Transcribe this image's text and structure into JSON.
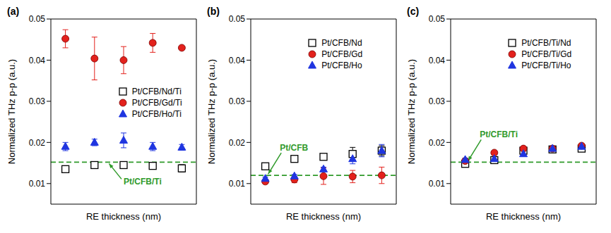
{
  "chart_data": [
    {
      "type": "scatter",
      "title": "(a)",
      "x_label": "RE thickness (nm)",
      "y_label": "Normalized THz p-p (a.u.)",
      "xlim": [
        0,
        4.5
      ],
      "xticks": [
        0,
        1,
        2,
        3,
        4
      ],
      "ylim": [
        0.005,
        0.05
      ],
      "yticks": [
        0.01,
        0.02,
        0.03,
        0.04,
        0.05
      ],
      "tick_labels": "y",
      "legend": "center",
      "reference": {
        "value": 0.0152,
        "label": "Pt/CFB/Ti"
      },
      "series": [
        {
          "name": "Pt/CFB/Nd/Ti",
          "color": "#000000",
          "marker": "square",
          "x": [
            0.45,
            1.35,
            2.25,
            3.15,
            4.05
          ],
          "values": [
            0.0135,
            0.0145,
            0.0145,
            0.0143,
            0.0137
          ],
          "errors": [
            0.0006,
            0.0004,
            0.0005,
            0.0006,
            0.0009
          ]
        },
        {
          "name": "Pt/CFB/Gd/Ti",
          "color": "#e3211c",
          "marker": "circle",
          "x": [
            0.45,
            1.35,
            2.25,
            3.15,
            4.05
          ],
          "values": [
            0.0452,
            0.0404,
            0.04,
            0.0442,
            0.043
          ],
          "errors": [
            0.0022,
            0.0052,
            0.0033,
            0.0023,
            0.0003
          ]
        },
        {
          "name": "Pt/CFB/Ho/Ti",
          "color": "#1f35e0",
          "marker": "triangle",
          "x": [
            0.45,
            1.35,
            2.25,
            3.15,
            4.05
          ],
          "values": [
            0.019,
            0.02,
            0.0205,
            0.019,
            0.0188
          ],
          "errors": [
            0.001,
            0.0008,
            0.0018,
            0.001,
            0.0007
          ]
        }
      ]
    },
    {
      "type": "scatter",
      "title": "(b)",
      "x_label": "RE thickness (nm)",
      "y_label": "Normalized THz p-p (a.u.)",
      "xlim": [
        0,
        4.5
      ],
      "xticks": [
        0,
        1,
        2,
        3,
        4
      ],
      "ylim": [
        0.005,
        0.05
      ],
      "yticks": [
        0.01,
        0.02,
        0.03,
        0.04,
        0.05
      ],
      "tick_labels": "y",
      "legend": "top",
      "reference": {
        "value": 0.012,
        "label": "Pt/CFB"
      },
      "series": [
        {
          "name": "Pt/CFB/Nd",
          "color": "#000000",
          "marker": "square",
          "x": [
            0.45,
            1.35,
            2.25,
            3.15,
            4.05
          ],
          "values": [
            0.0142,
            0.016,
            0.0165,
            0.0172,
            0.018
          ],
          "errors": [
            0.0004,
            0.0005,
            0.0006,
            0.0016,
            0.0012
          ]
        },
        {
          "name": "Pt/CFB/Gd",
          "color": "#e3211c",
          "marker": "circle",
          "x": [
            0.45,
            1.35,
            2.25,
            3.15,
            4.05
          ],
          "values": [
            0.0105,
            0.011,
            0.0118,
            0.0117,
            0.012
          ],
          "errors": [
            0.0004,
            0.0008,
            0.002,
            0.0015,
            0.002
          ]
        },
        {
          "name": "Pt/CFB/Ho",
          "color": "#1f35e0",
          "marker": "triangle",
          "x": [
            0.45,
            1.35,
            2.25,
            3.15,
            4.05
          ],
          "values": [
            0.0112,
            0.0118,
            0.0135,
            0.016,
            0.018
          ],
          "errors": [
            0.0004,
            0.0004,
            0.0005,
            0.0012,
            0.0015
          ]
        }
      ]
    },
    {
      "type": "scatter",
      "title": "(c)",
      "x_label": "RE thickness (nm)",
      "y_label": "Normalized THz p-p (a.u.)",
      "xlim": [
        0,
        4.5
      ],
      "xticks": [
        0,
        1,
        2,
        3,
        4
      ],
      "ylim": [
        0.005,
        0.05
      ],
      "yticks": [
        0.01,
        0.02,
        0.03,
        0.04,
        0.05
      ],
      "tick_labels": "y",
      "legend": "top",
      "reference": {
        "value": 0.0152,
        "label": "Pt/CFB/Ti"
      },
      "series": [
        {
          "name": "Pt/CFB/Ti/Nd",
          "color": "#000000",
          "marker": "square",
          "x": [
            0.45,
            1.35,
            2.25,
            3.15,
            4.05
          ],
          "values": [
            0.0148,
            0.0157,
            0.018,
            0.0183,
            0.0185
          ],
          "errors": [
            0.0004,
            0.0004,
            0.0005,
            0.0005,
            0.0005
          ]
        },
        {
          "name": "Pt/CFB/Ti/Gd",
          "color": "#e3211c",
          "marker": "circle",
          "x": [
            0.45,
            1.35,
            2.25,
            3.15,
            4.05
          ],
          "values": [
            0.0155,
            0.0175,
            0.0185,
            0.0185,
            0.0192
          ],
          "errors": [
            0.0004,
            0.0004,
            0.0004,
            0.0004,
            0.0005
          ]
        },
        {
          "name": "Pt/CFB/Ti/Ho",
          "color": "#1f35e0",
          "marker": "triangle",
          "x": [
            0.45,
            1.35,
            2.25,
            3.15,
            4.05
          ],
          "values": [
            0.0158,
            0.016,
            0.0172,
            0.0185,
            0.019
          ],
          "errors": [
            0.0004,
            0.0004,
            0.0004,
            0.0005,
            0.0005
          ]
        }
      ]
    }
  ]
}
